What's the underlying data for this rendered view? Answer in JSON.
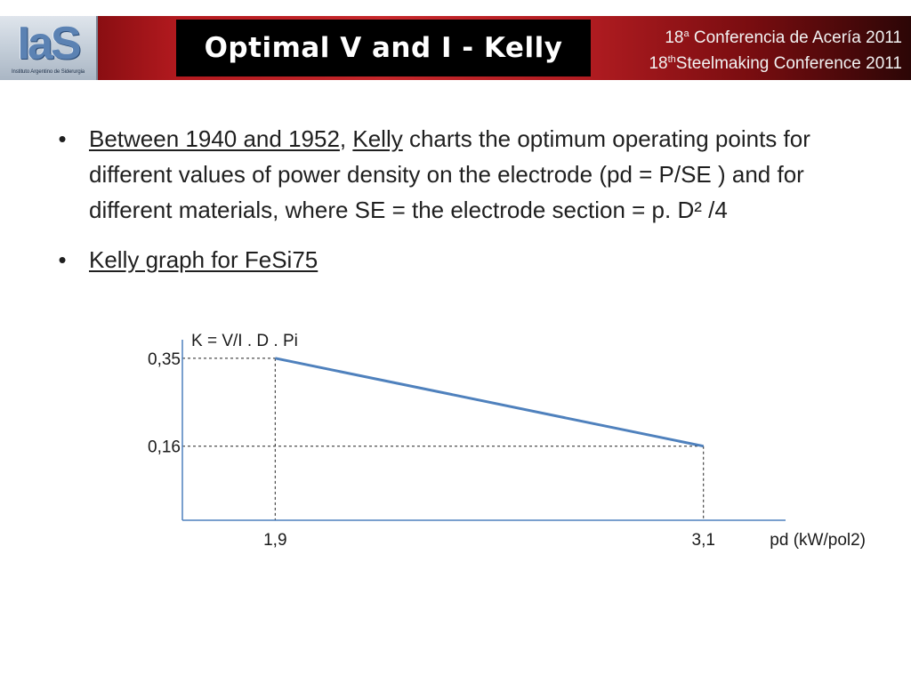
{
  "header": {
    "logo_text": "IaS",
    "logo_subtitle": "Instituto Argentino de Siderurgia",
    "title": "Optimal V and I - Kelly",
    "conference_es_num": "18",
    "conference_es_sup": "a",
    "conference_es_text": " Conferencia de Acería 2011",
    "conference_en_num": "18",
    "conference_en_sup": "th",
    "conference_en_text": "Steelmaking Conference 2011",
    "colors": {
      "banner_red": "#c6272b",
      "title_bg": "#000000",
      "logo_blue": "#5b82b3"
    }
  },
  "bullets": [
    {
      "marker": "•",
      "link1": "Between 1940 and 1952",
      "sep": ", ",
      "link2": "Kelly",
      "rest": " charts the optimum operating points for different values of power density on the electrode (pd = P/SE ) and for different materials, where SE = the electrode section = p. D² /4"
    },
    {
      "marker": "•",
      "link": "Kelly graph for FeSi75"
    }
  ],
  "chart_data": {
    "type": "line",
    "title": "",
    "ylabel": "K = V/I . D . Pi",
    "xlabel": "pd (kW/pol2)",
    "x_ticks": [
      "1,9",
      "3,1"
    ],
    "y_ticks": [
      "0,35",
      "0,16"
    ],
    "series": [
      {
        "x": [
          1.9,
          3.1
        ],
        "y": [
          0.35,
          0.16
        ]
      }
    ],
    "xlim": [
      1.64,
      3.33
    ],
    "ylim": [
      0,
      0.39
    ],
    "grid": false,
    "reference_lines": "dashed",
    "line_color": "#4f81bd",
    "axis_color": "#4f81bd"
  }
}
